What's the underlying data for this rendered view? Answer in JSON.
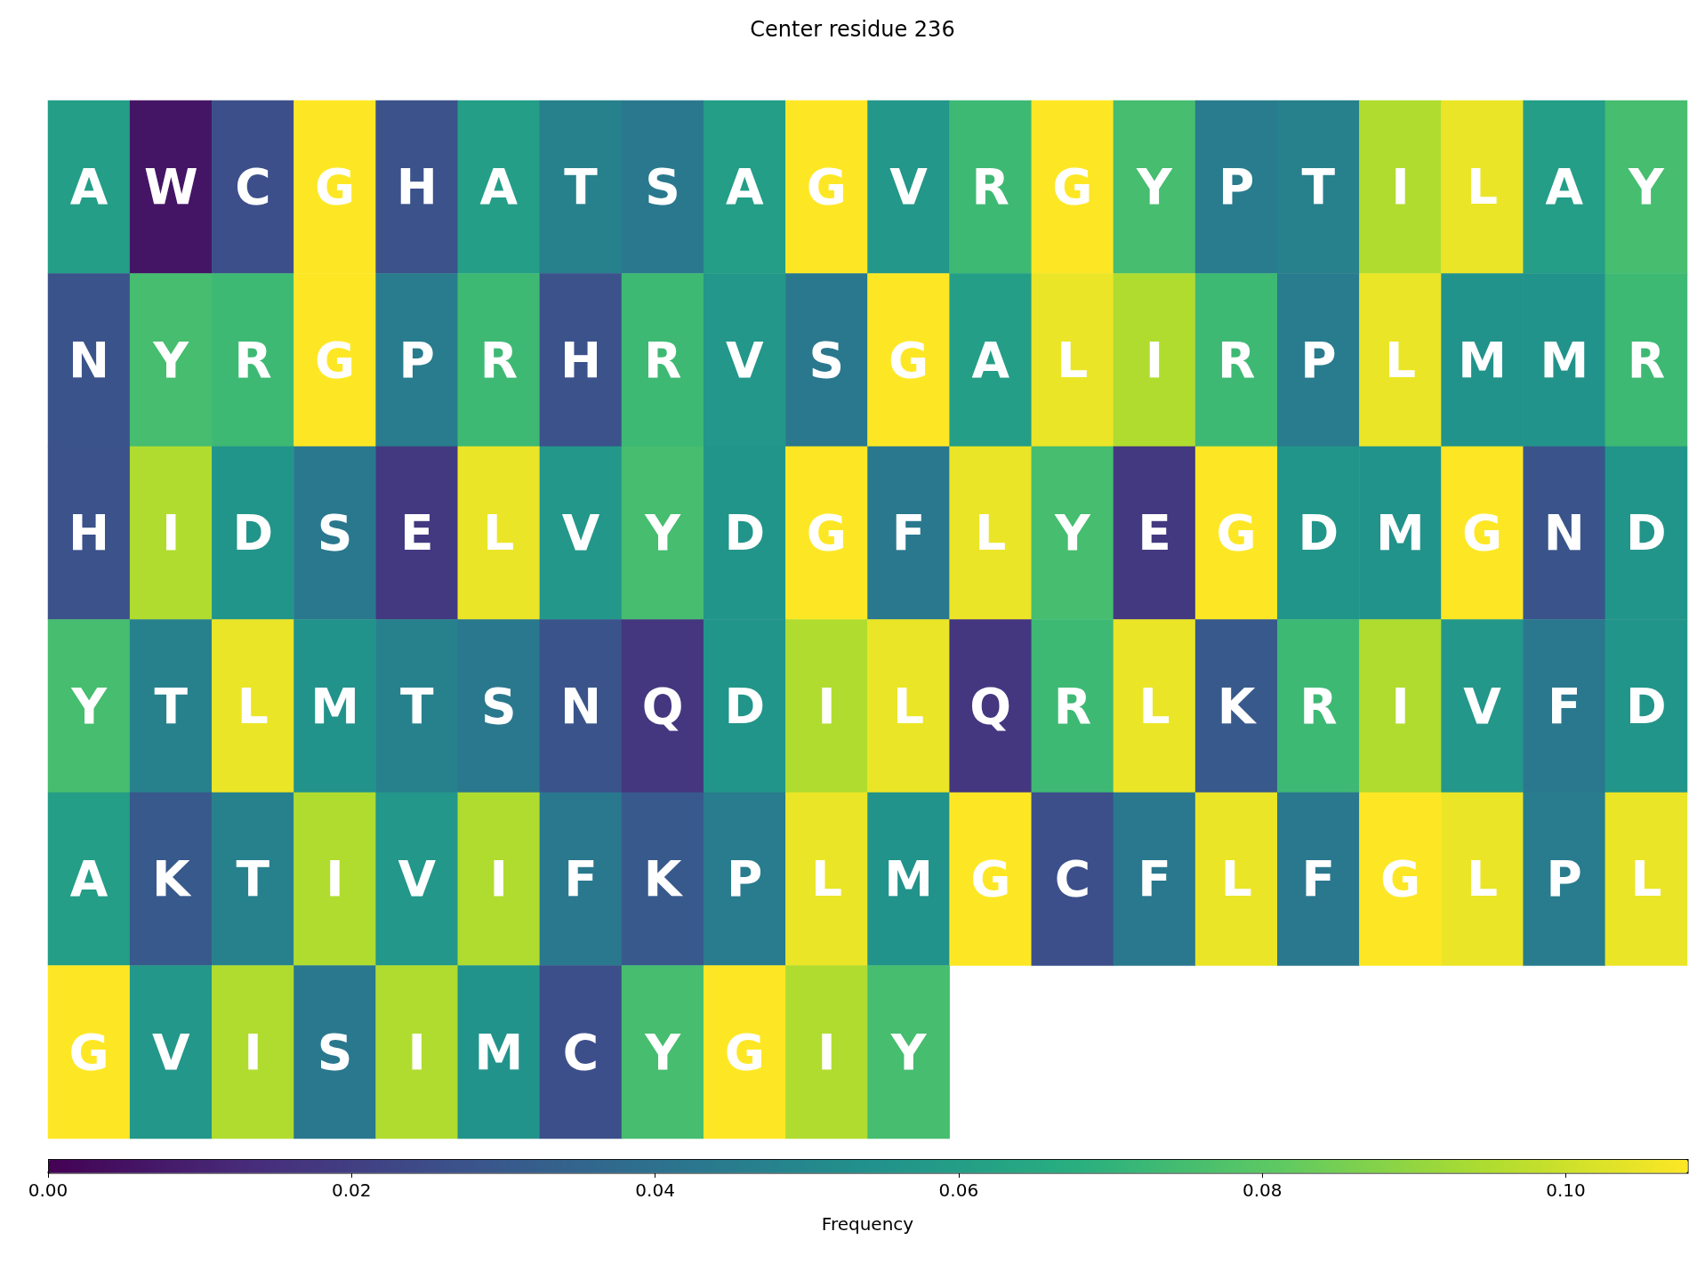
{
  "chart_data": {
    "type": "heatmap",
    "title": "Center residue 236",
    "clabel": "Frequency",
    "categories": [
      null,
      null,
      null,
      null,
      null,
      null,
      null,
      null,
      null,
      null,
      null,
      null,
      null,
      null,
      null,
      null,
      null,
      null,
      null,
      null
    ],
    "y_categories": [
      null,
      null,
      null,
      null,
      null,
      null
    ],
    "cell_labels": [
      [
        "A",
        "W",
        "C",
        "G",
        "H",
        "A",
        "T",
        "S",
        "A",
        "G",
        "V",
        "R",
        "G",
        "Y",
        "P",
        "T",
        "I",
        "L",
        "A",
        "Y"
      ],
      [
        "N",
        "Y",
        "R",
        "G",
        "P",
        "R",
        "H",
        "R",
        "V",
        "S",
        "G",
        "A",
        "L",
        "I",
        "R",
        "P",
        "L",
        "M",
        "M",
        "R"
      ],
      [
        "H",
        "I",
        "D",
        "S",
        "E",
        "L",
        "V",
        "Y",
        "D",
        "G",
        "F",
        "L",
        "Y",
        "E",
        "G",
        "D",
        "M",
        "G",
        "N",
        "D"
      ],
      [
        "Y",
        "T",
        "L",
        "M",
        "T",
        "S",
        "N",
        "Q",
        "D",
        "I",
        "L",
        "Q",
        "R",
        "L",
        "K",
        "R",
        "I",
        "V",
        "F",
        "D"
      ],
      [
        "A",
        "K",
        "T",
        "I",
        "V",
        "I",
        "F",
        "K",
        "P",
        "L",
        "M",
        "G",
        "C",
        "F",
        "L",
        "F",
        "G",
        "L",
        "P",
        "L"
      ],
      [
        "G",
        "V",
        "I",
        "S",
        "I",
        "M",
        "C",
        "Y",
        "G",
        "I",
        "Y",
        null,
        null,
        null,
        null,
        null,
        null,
        null,
        null,
        null
      ]
    ],
    "cells": [
      [
        0.06,
        0.006,
        0.026,
        0.108,
        0.027,
        0.06,
        0.047,
        0.043,
        0.06,
        0.108,
        0.057,
        0.073,
        0.108,
        0.075,
        0.045,
        0.047,
        0.095,
        0.105,
        0.06,
        0.075
      ],
      [
        0.028,
        0.075,
        0.073,
        0.108,
        0.045,
        0.073,
        0.027,
        0.073,
        0.057,
        0.043,
        0.108,
        0.06,
        0.105,
        0.095,
        0.073,
        0.045,
        0.105,
        0.055,
        0.055,
        0.073
      ],
      [
        0.027,
        0.095,
        0.056,
        0.043,
        0.018,
        0.105,
        0.057,
        0.075,
        0.056,
        0.108,
        0.043,
        0.105,
        0.075,
        0.018,
        0.108,
        0.056,
        0.055,
        0.108,
        0.028,
        0.056
      ],
      [
        0.075,
        0.047,
        0.105,
        0.055,
        0.047,
        0.043,
        0.028,
        0.017,
        0.056,
        0.095,
        0.105,
        0.017,
        0.073,
        0.105,
        0.03,
        0.073,
        0.095,
        0.057,
        0.043,
        0.056
      ],
      [
        0.06,
        0.03,
        0.047,
        0.095,
        0.057,
        0.095,
        0.043,
        0.03,
        0.045,
        0.105,
        0.055,
        0.108,
        0.026,
        0.043,
        0.105,
        0.043,
        0.108,
        0.105,
        0.045,
        0.105
      ],
      [
        0.108,
        0.057,
        0.095,
        0.043,
        0.095,
        0.055,
        0.026,
        0.075,
        0.108,
        0.095,
        0.075,
        null,
        null,
        null,
        null,
        null,
        null,
        null,
        null,
        null
      ]
    ],
    "clim": [
      0,
      0.108
    ],
    "cticks": [
      {
        "value": 0,
        "label": "0.00"
      },
      {
        "value": 0.02,
        "label": "0.02"
      },
      {
        "value": 0.04,
        "label": "0.04"
      },
      {
        "value": 0.06,
        "label": "0.06"
      },
      {
        "value": 0.08,
        "label": "0.08"
      },
      {
        "value": 0.1,
        "label": "0.10"
      }
    ]
  }
}
